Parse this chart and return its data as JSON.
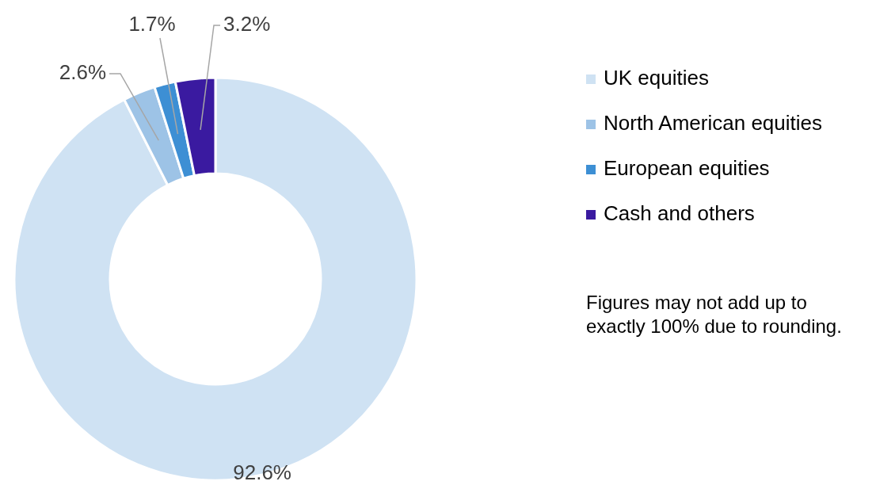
{
  "chart_data": {
    "type": "donut",
    "categories": [
      "UK equities",
      "North American equities",
      "European equities",
      "Cash and others"
    ],
    "values": [
      92.6,
      2.6,
      1.7,
      3.2
    ],
    "colors": [
      "#cfe2f3",
      "#9dc3e6",
      "#3d8fd4",
      "#3a1aa0"
    ],
    "value_labels": [
      "92.6%",
      "2.6%",
      "1.7%",
      "3.2%"
    ],
    "legend": "right",
    "annotations": [
      "Figures may not add up to exactly 100% due to rounding."
    ]
  }
}
